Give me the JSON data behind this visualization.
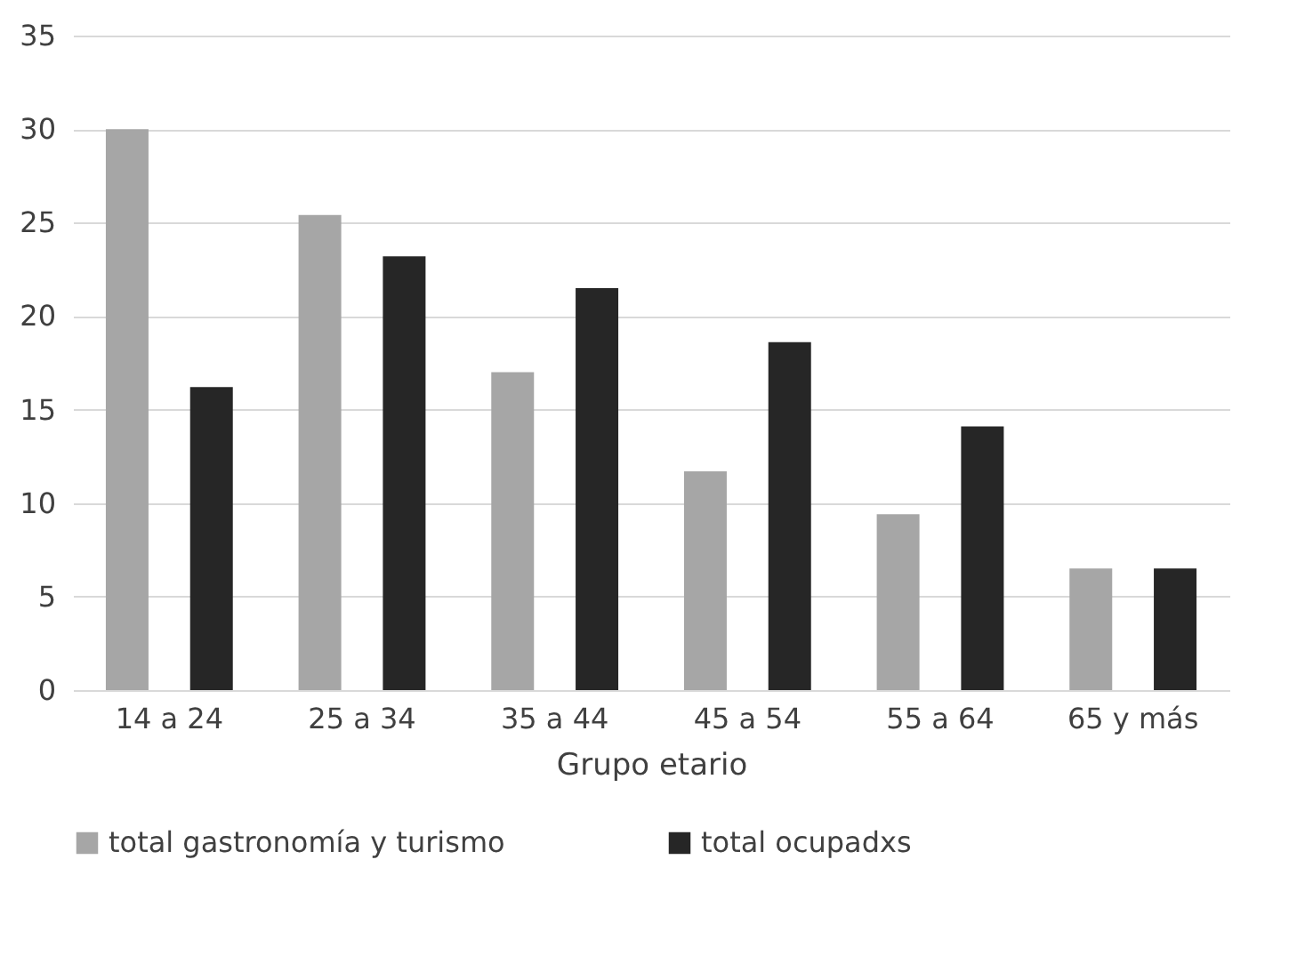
{
  "chart_data": {
    "type": "bar",
    "xlabel": "Grupo etario",
    "categories": [
      "14 a 24",
      "25 a 34",
      "35 a 44",
      "45 a 54",
      "55 a 64",
      "65 y más"
    ],
    "series": [
      {
        "name": "total gastronomía y turismo",
        "color": "#a6a6a6",
        "values": [
          30.0,
          25.4,
          17.0,
          11.7,
          9.4,
          6.5
        ]
      },
      {
        "name": "total ocupadxs",
        "color": "#262626",
        "values": [
          16.2,
          23.2,
          21.5,
          18.6,
          14.1,
          6.5
        ]
      }
    ],
    "ylim": [
      0,
      35
    ],
    "yticks": [
      0,
      5,
      10,
      15,
      20,
      25,
      30,
      35
    ],
    "grid": "y",
    "legend": "bottom"
  }
}
